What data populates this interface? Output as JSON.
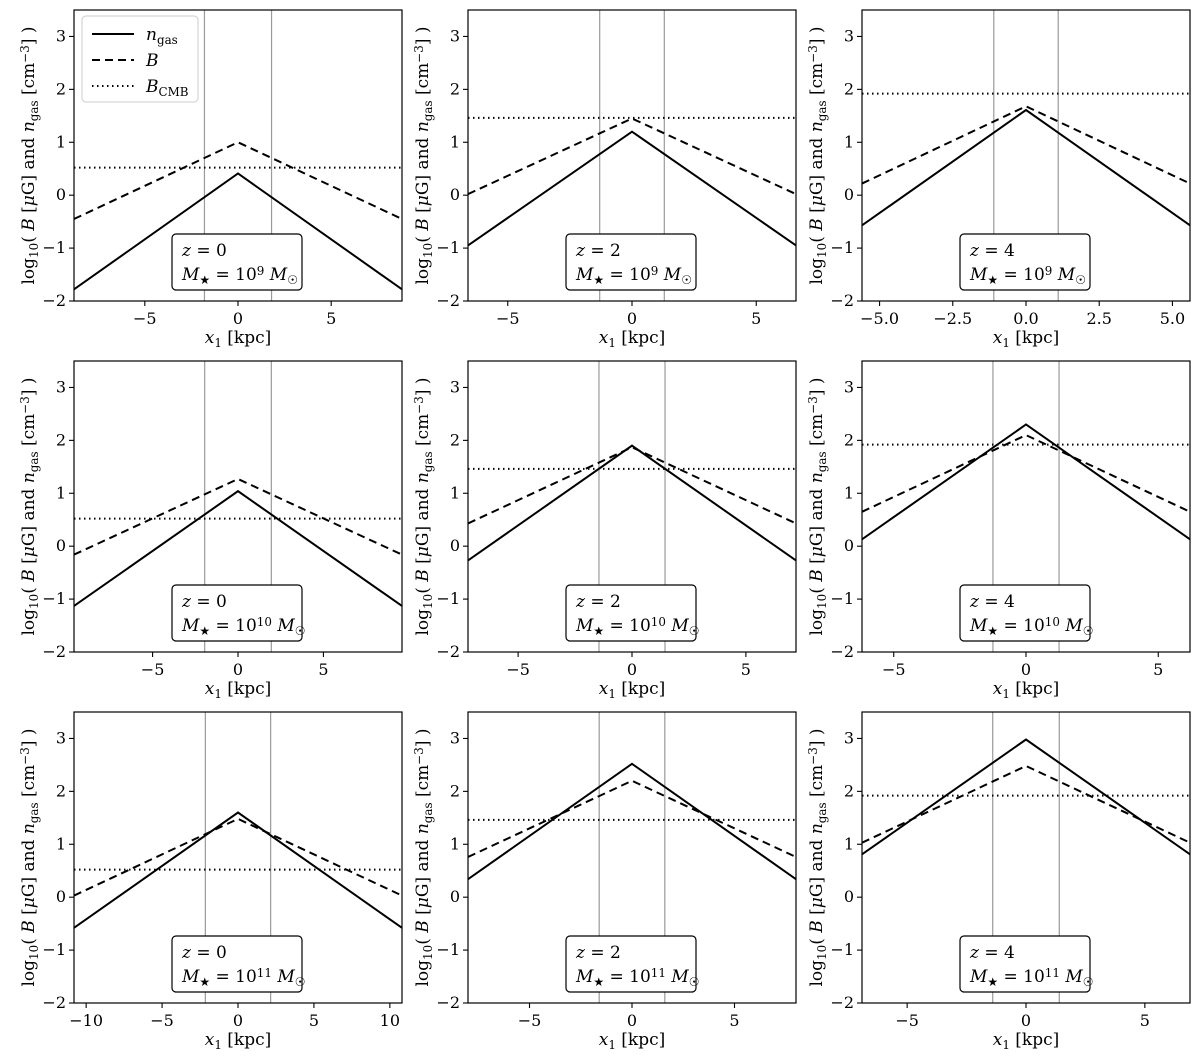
{
  "figure": {
    "ylabel": "log₁₀( B [μG] and n_gas [cm⁻³] )",
    "xlabel": "x₁ [kpc]",
    "legend": {
      "placement": "top-left of first panel",
      "entries": [
        {
          "label": "n_gas",
          "style": "solid"
        },
        {
          "label": "B",
          "style": "dashed"
        },
        {
          "label": "B_CMB",
          "style": "dotted"
        }
      ]
    }
  },
  "chart_data": [
    {
      "type": "line",
      "row": 0,
      "col": 0,
      "redshift_label": "z = 0",
      "mass_label": "M★ = 10^9 M☉",
      "xlim": [
        -8.8,
        8.8
      ],
      "ylim": [
        -2,
        3.5
      ],
      "xticks": [
        -5,
        0,
        5
      ],
      "yticks": [
        -2,
        -1,
        0,
        1,
        2,
        3
      ],
      "vlines": [
        -1.8,
        1.8
      ],
      "B_CMB": 0.52,
      "x": [
        -8.8,
        0,
        8.8
      ],
      "series": [
        {
          "name": "n_gas",
          "style": "solid",
          "values": [
            -1.78,
            0.41,
            -1.78
          ]
        },
        {
          "name": "B",
          "style": "dashed",
          "values": [
            -0.45,
            1.0,
            -0.45
          ]
        }
      ]
    },
    {
      "type": "line",
      "row": 0,
      "col": 1,
      "redshift_label": "z = 2",
      "mass_label": "M★ = 10^9 M☉",
      "xlim": [
        -6.6,
        6.6
      ],
      "ylim": [
        -2,
        3.5
      ],
      "xticks": [
        -5,
        0,
        5
      ],
      "yticks": [
        -2,
        -1,
        0,
        1,
        2,
        3
      ],
      "vlines": [
        -1.3,
        1.3
      ],
      "B_CMB": 1.46,
      "x": [
        -6.6,
        0,
        6.6
      ],
      "series": [
        {
          "name": "n_gas",
          "style": "solid",
          "values": [
            -0.95,
            1.2,
            -0.95
          ]
        },
        {
          "name": "B",
          "style": "dashed",
          "values": [
            0.02,
            1.45,
            0.02
          ]
        }
      ]
    },
    {
      "type": "line",
      "row": 0,
      "col": 2,
      "redshift_label": "z = 4",
      "mass_label": "M★ = 10^9 M☉",
      "xlim": [
        -5.6,
        5.6
      ],
      "ylim": [
        -2,
        3.5
      ],
      "xticks": [
        -5.0,
        -2.5,
        0.0,
        2.5,
        5.0
      ],
      "tick_decimals": 1,
      "yticks": [
        -2,
        -1,
        0,
        1,
        2,
        3
      ],
      "vlines": [
        -1.1,
        1.1
      ],
      "B_CMB": 1.92,
      "x": [
        -5.6,
        0,
        5.6
      ],
      "series": [
        {
          "name": "n_gas",
          "style": "solid",
          "values": [
            -0.57,
            1.61,
            -0.57
          ]
        },
        {
          "name": "B",
          "style": "dashed",
          "values": [
            0.22,
            1.68,
            0.22
          ]
        }
      ]
    },
    {
      "type": "line",
      "row": 1,
      "col": 0,
      "redshift_label": "z = 0",
      "mass_label": "M★ = 10^10 M☉",
      "xlim": [
        -9.6,
        9.6
      ],
      "ylim": [
        -2,
        3.5
      ],
      "xticks": [
        -5,
        0,
        5
      ],
      "yticks": [
        -2,
        -1,
        0,
        1,
        2,
        3
      ],
      "vlines": [
        -1.95,
        1.95
      ],
      "B_CMB": 0.52,
      "x": [
        -9.6,
        0,
        9.6
      ],
      "series": [
        {
          "name": "n_gas",
          "style": "solid",
          "values": [
            -1.13,
            1.04,
            -1.13
          ]
        },
        {
          "name": "B",
          "style": "dashed",
          "values": [
            -0.16,
            1.27,
            -0.16
          ]
        }
      ]
    },
    {
      "type": "line",
      "row": 1,
      "col": 1,
      "redshift_label": "z = 2",
      "mass_label": "M★ = 10^10 M☉",
      "xlim": [
        -7.2,
        7.2
      ],
      "ylim": [
        -2,
        3.5
      ],
      "xticks": [
        -5,
        0,
        5
      ],
      "yticks": [
        -2,
        -1,
        0,
        1,
        2,
        3
      ],
      "vlines": [
        -1.45,
        1.45
      ],
      "B_CMB": 1.46,
      "x": [
        -7.2,
        0,
        7.2
      ],
      "series": [
        {
          "name": "n_gas",
          "style": "solid",
          "values": [
            -0.27,
            1.9,
            -0.27
          ]
        },
        {
          "name": "B",
          "style": "dashed",
          "values": [
            0.43,
            1.87,
            0.43
          ]
        }
      ]
    },
    {
      "type": "line",
      "row": 1,
      "col": 2,
      "redshift_label": "z = 4",
      "mass_label": "M★ = 10^10 M☉",
      "xlim": [
        -6.2,
        6.2
      ],
      "ylim": [
        -2,
        3.5
      ],
      "xticks": [
        -5,
        0,
        5
      ],
      "yticks": [
        -2,
        -1,
        0,
        1,
        2,
        3
      ],
      "vlines": [
        -1.25,
        1.25
      ],
      "B_CMB": 1.92,
      "x": [
        -6.2,
        0,
        6.2
      ],
      "series": [
        {
          "name": "n_gas",
          "style": "solid",
          "values": [
            0.13,
            2.3,
            0.13
          ]
        },
        {
          "name": "B",
          "style": "dashed",
          "values": [
            0.65,
            2.1,
            0.65
          ]
        }
      ]
    },
    {
      "type": "line",
      "row": 2,
      "col": 0,
      "redshift_label": "z = 0",
      "mass_label": "M★ = 10^11 M☉",
      "xlim": [
        -10.8,
        10.8
      ],
      "ylim": [
        -2,
        3.5
      ],
      "xticks": [
        -10,
        -5,
        0,
        5,
        10
      ],
      "yticks": [
        -2,
        -1,
        0,
        1,
        2,
        3
      ],
      "vlines": [
        -2.15,
        2.15
      ],
      "B_CMB": 0.52,
      "x": [
        -10.8,
        0,
        10.8
      ],
      "series": [
        {
          "name": "n_gas",
          "style": "solid",
          "values": [
            -0.58,
            1.6,
            -0.58
          ]
        },
        {
          "name": "B",
          "style": "dashed",
          "values": [
            0.03,
            1.48,
            0.03
          ]
        }
      ]
    },
    {
      "type": "line",
      "row": 2,
      "col": 1,
      "redshift_label": "z = 2",
      "mass_label": "M★ = 10^11 M☉",
      "xlim": [
        -8.0,
        8.0
      ],
      "ylim": [
        -2,
        3.5
      ],
      "xticks": [
        -5,
        0,
        5
      ],
      "yticks": [
        -2,
        -1,
        0,
        1,
        2,
        3
      ],
      "vlines": [
        -1.6,
        1.6
      ],
      "B_CMB": 1.46,
      "x": [
        -8.0,
        0,
        8.0
      ],
      "series": [
        {
          "name": "n_gas",
          "style": "solid",
          "values": [
            0.34,
            2.52,
            0.34
          ]
        },
        {
          "name": "B",
          "style": "dashed",
          "values": [
            0.76,
            2.2,
            0.76
          ]
        }
      ]
    },
    {
      "type": "line",
      "row": 2,
      "col": 2,
      "redshift_label": "z = 4",
      "mass_label": "M★ = 10^11 M☉",
      "xlim": [
        -6.9,
        6.9
      ],
      "ylim": [
        -2,
        3.5
      ],
      "xticks": [
        -5,
        0,
        5
      ],
      "yticks": [
        -2,
        -1,
        0,
        1,
        2,
        3
      ],
      "vlines": [
        -1.4,
        1.4
      ],
      "B_CMB": 1.92,
      "x": [
        -6.9,
        0,
        6.9
      ],
      "series": [
        {
          "name": "n_gas",
          "style": "solid",
          "values": [
            0.81,
            2.98,
            0.81
          ]
        },
        {
          "name": "B",
          "style": "dashed",
          "values": [
            1.03,
            2.48,
            1.03
          ]
        }
      ]
    }
  ]
}
